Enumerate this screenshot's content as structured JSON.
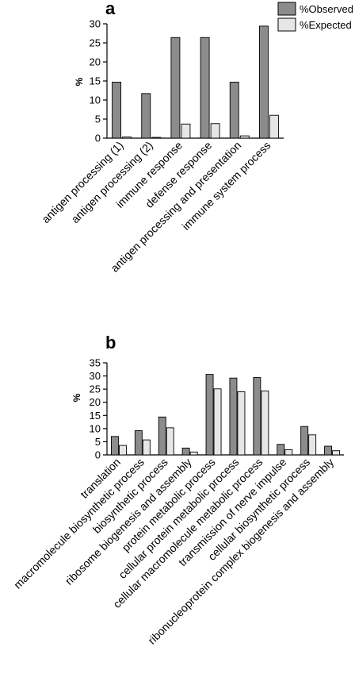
{
  "colors": {
    "observed": "#8c8c8c",
    "expected": "#e6e6e6",
    "stroke": "#000000"
  },
  "legend": [
    "%Observed",
    "%Expected"
  ],
  "chart_data": [
    {
      "type": "bar",
      "panel": "a",
      "ylabel": "%",
      "ylim": [
        0,
        30
      ],
      "yticks": [
        0,
        5,
        10,
        15,
        20,
        25,
        30
      ],
      "legend_position": "top-right",
      "categories": [
        "antigen processing (1)",
        "antigen processing (2)",
        "immune response",
        "defense response",
        "antigen processing and presentation",
        "immune system process"
      ],
      "series": [
        {
          "name": "%Observed",
          "values": [
            14.7,
            11.7,
            26.4,
            26.4,
            14.7,
            29.4
          ]
        },
        {
          "name": "%Expected",
          "values": [
            0.3,
            0.2,
            3.7,
            3.8,
            0.6,
            6.0
          ]
        }
      ]
    },
    {
      "type": "bar",
      "panel": "b",
      "ylabel": "%",
      "ylim": [
        0,
        35
      ],
      "yticks": [
        0,
        5,
        10,
        15,
        20,
        25,
        30,
        35
      ],
      "categories": [
        "translation",
        "macromolecule biosynthetic process",
        "biosynthetic process",
        "ribosome biogenesis and assembly",
        "protein metabolic process",
        "cellular protein metabolic process",
        "cellular macromolecule metabolic process",
        "transmission of nerve impulse",
        "cellular biosynthetic process",
        "ribonucleoprotein complex biogenesis and assembly"
      ],
      "series": [
        {
          "name": "%Observed",
          "values": [
            7.0,
            9.2,
            14.4,
            2.6,
            30.6,
            29.2,
            29.4,
            4.0,
            10.8,
            3.3
          ]
        },
        {
          "name": "%Expected",
          "values": [
            3.6,
            5.7,
            10.3,
            1.1,
            25.1,
            24.0,
            24.3,
            2.0,
            7.6,
            1.6
          ]
        }
      ]
    }
  ]
}
